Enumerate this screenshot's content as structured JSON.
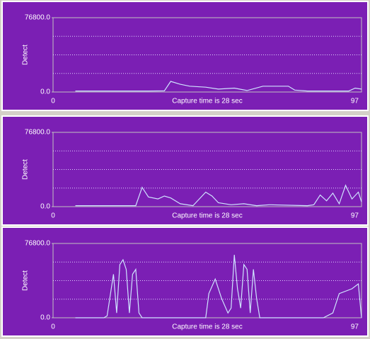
{
  "chart_data": [
    {
      "type": "line",
      "ylabel": "Detect",
      "xlabel": "Capture time is 28 sec",
      "color": "#cfe3ff",
      "xlim": [
        0,
        97
      ],
      "xticks": [
        0,
        97
      ],
      "ylim": [
        0,
        76800
      ],
      "yticks": [
        {
          "value": 0,
          "label": "0.0"
        },
        {
          "value": 76800,
          "label": "76800.0"
        }
      ],
      "grid": true,
      "x": [
        7,
        30,
        35,
        37,
        40,
        43,
        48,
        52,
        57,
        61,
        66,
        70,
        74,
        76,
        80,
        90,
        93,
        95,
        97
      ],
      "values": [
        1000,
        1000,
        1200,
        11000,
        8000,
        6000,
        5000,
        3000,
        4000,
        1500,
        6000,
        6000,
        6000,
        2000,
        1000,
        1000,
        1000,
        4000,
        3000
      ]
    },
    {
      "type": "line",
      "ylabel": "Detect",
      "xlabel": "Capture time is 28 sec",
      "color": "#cfe3ff",
      "xlim": [
        0,
        97
      ],
      "xticks": [
        0,
        97
      ],
      "ylim": [
        0,
        76800
      ],
      "yticks": [
        {
          "value": 0,
          "label": "0.0"
        },
        {
          "value": 76800,
          "label": "76800.0"
        }
      ],
      "grid": true,
      "x": [
        7,
        26,
        28,
        30,
        33,
        35,
        37,
        40,
        44,
        48,
        50,
        52,
        56,
        60,
        64,
        68,
        80,
        82,
        84,
        86,
        88,
        90,
        92,
        94,
        96,
        97
      ],
      "values": [
        1000,
        1000,
        20000,
        10000,
        8000,
        11000,
        9000,
        3000,
        1000,
        15000,
        11000,
        4000,
        2000,
        3000,
        1000,
        2000,
        1000,
        2000,
        12000,
        6000,
        14000,
        3000,
        22000,
        8000,
        15000,
        5000
      ]
    },
    {
      "type": "line",
      "ylabel": "Detect",
      "xlabel": "Capture time is 28 sec",
      "color": "#cfe3ff",
      "xlim": [
        0,
        97
      ],
      "xticks": [
        0,
        97
      ],
      "ylim": [
        0,
        76800
      ],
      "yticks": [
        {
          "value": 0,
          "label": "0.0"
        },
        {
          "value": 76800,
          "label": "76800.0"
        }
      ],
      "grid": true,
      "x": [
        7,
        16,
        17,
        19,
        20,
        21,
        22,
        23,
        24,
        25,
        26,
        27,
        28,
        30,
        48,
        49,
        51,
        53,
        55,
        56,
        57,
        58,
        59,
        60,
        61,
        62,
        63,
        64,
        65,
        67,
        85,
        88,
        90,
        94,
        96,
        97
      ],
      "values": [
        0,
        0,
        2000,
        45000,
        5000,
        55000,
        60000,
        50000,
        5000,
        45000,
        50000,
        5000,
        0,
        0,
        0,
        25000,
        40000,
        20000,
        5000,
        10000,
        65000,
        30000,
        10000,
        55000,
        50000,
        5000,
        50000,
        20000,
        0,
        0,
        0,
        5000,
        25000,
        30000,
        35000,
        0
      ]
    }
  ]
}
